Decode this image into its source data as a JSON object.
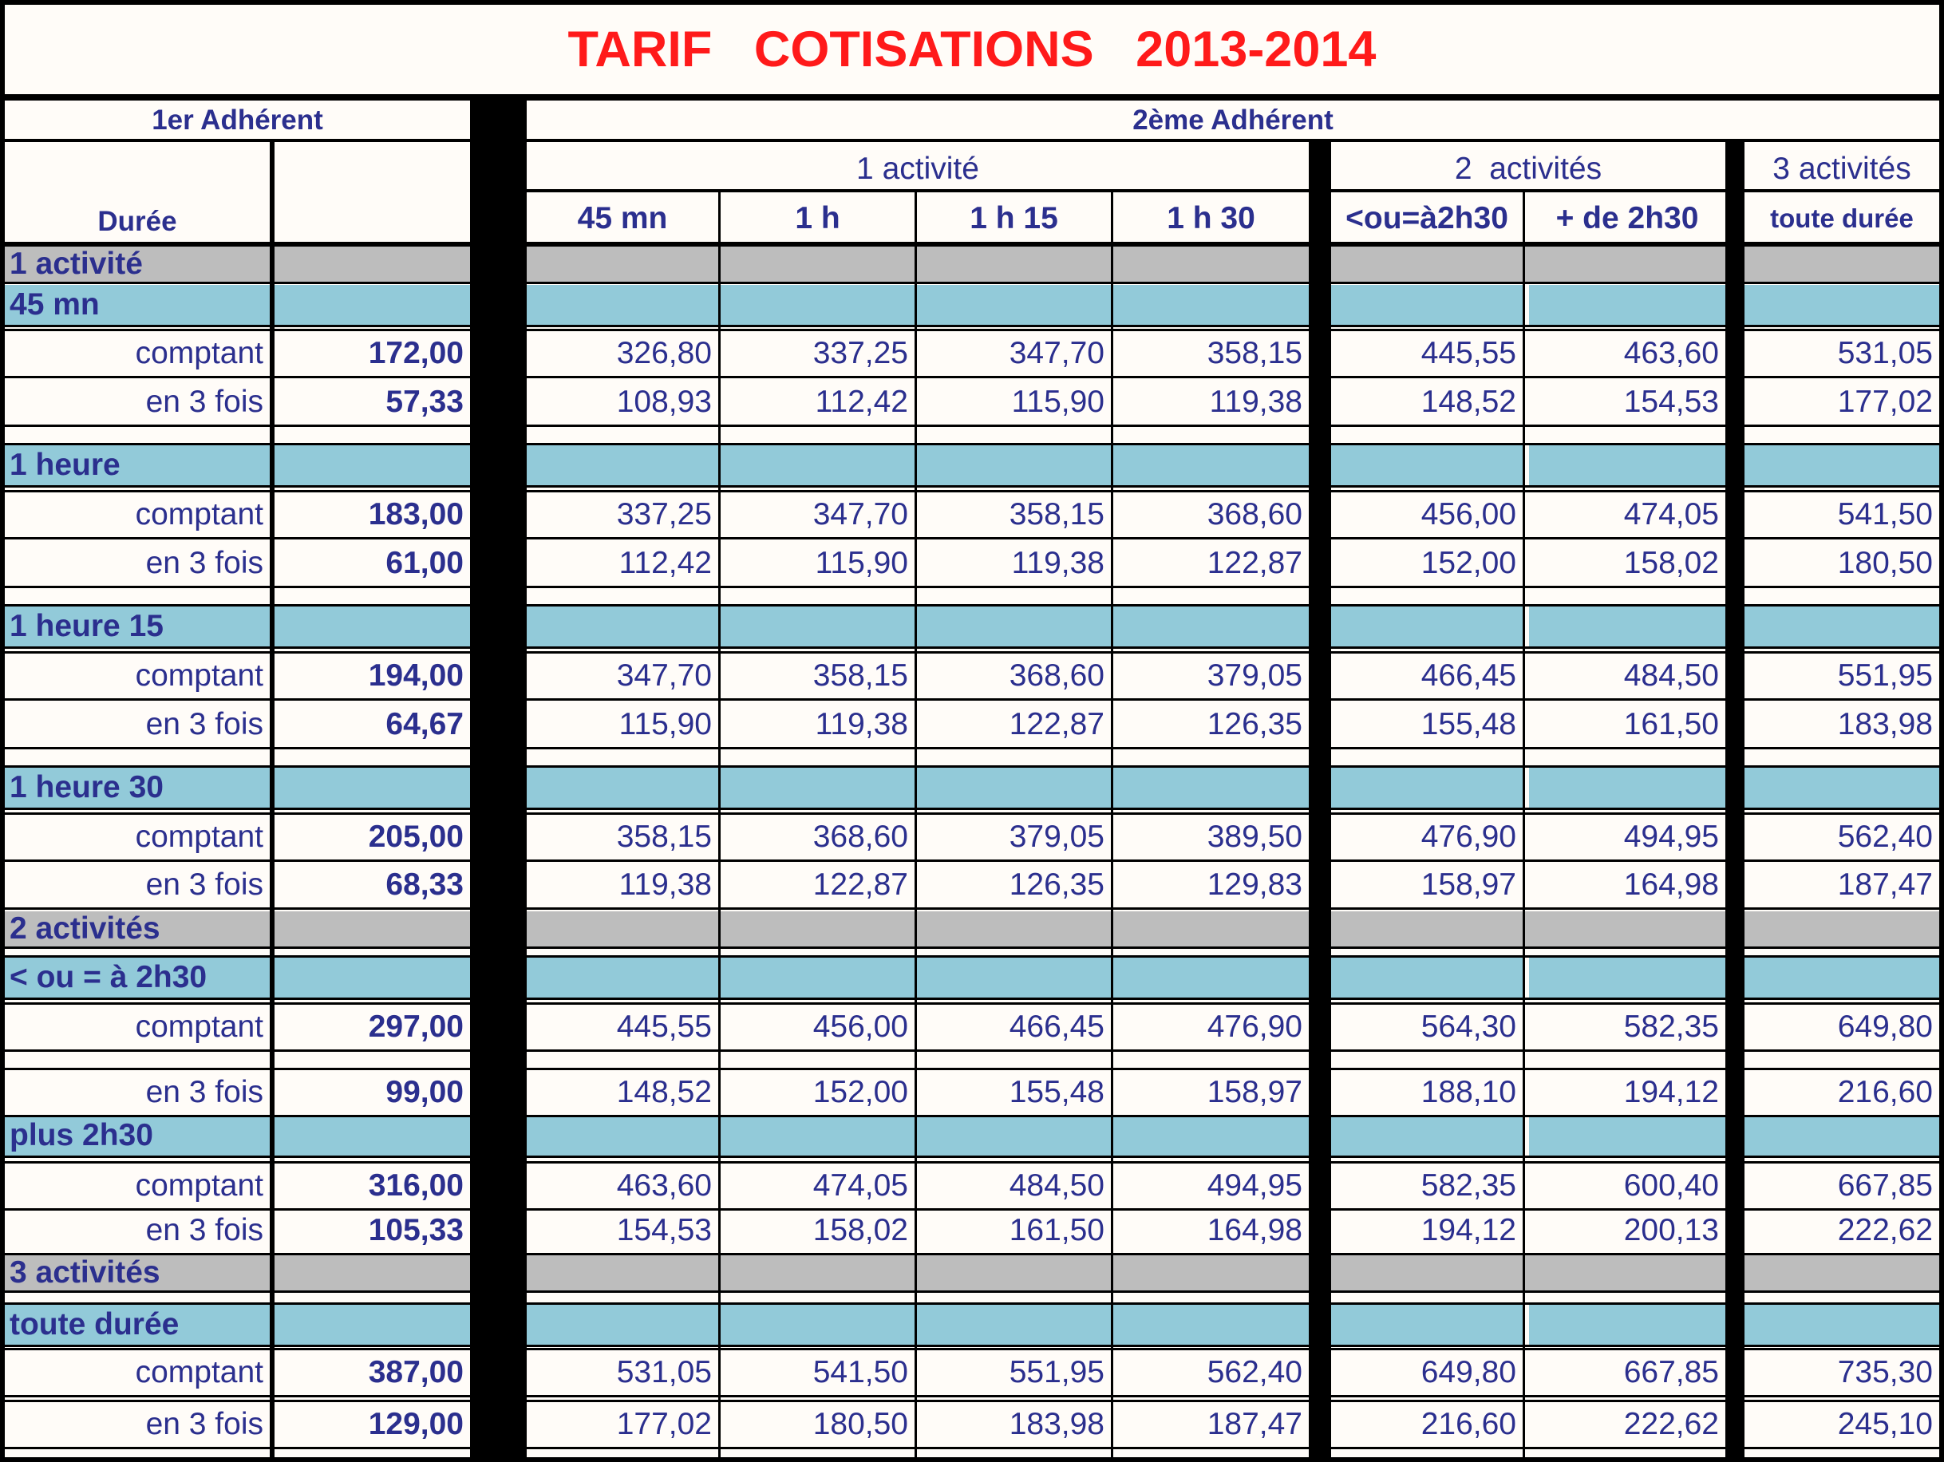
{
  "title": "TARIF   COTISATIONS   2013-2014",
  "colors": {
    "title": "#ff1a1a",
    "text": "#2b2f8e",
    "gray_band": "#bdbdbd",
    "blue_band": "#92cad9",
    "background": "#fffcf8",
    "grid": "#000000"
  },
  "header": {
    "first_member": "1er Adhérent",
    "second_member": "2ème Adhérent",
    "duration": "Durée",
    "group_1_activity": "1 activité",
    "group_2_activities": "2  activités",
    "group_3_activities": "3 activités",
    "columns": [
      "45 mn",
      "1 h",
      "1 h 15",
      "1 h 30",
      "<ou=à2h30",
      "+ de 2h30",
      "toute durée"
    ]
  },
  "sections": [
    {
      "label": "1 activité",
      "groups": [
        {
          "label": "45 mn",
          "rows": [
            {
              "label": "comptant",
              "first": "172,00",
              "values": [
                "326,80",
                "337,25",
                "347,70",
                "358,15",
                "445,55",
                "463,60",
                "531,05"
              ]
            },
            {
              "label": "en 3 fois",
              "first": "57,33",
              "values": [
                "108,93",
                "112,42",
                "115,90",
                "119,38",
                "148,52",
                "154,53",
                "177,02"
              ]
            }
          ]
        },
        {
          "label": "1 heure",
          "rows": [
            {
              "label": "comptant",
              "first": "183,00",
              "values": [
                "337,25",
                "347,70",
                "358,15",
                "368,60",
                "456,00",
                "474,05",
                "541,50"
              ]
            },
            {
              "label": "en 3 fois",
              "first": "61,00",
              "values": [
                "112,42",
                "115,90",
                "119,38",
                "122,87",
                "152,00",
                "158,02",
                "180,50"
              ]
            }
          ]
        },
        {
          "label": "1 heure 15",
          "rows": [
            {
              "label": "comptant",
              "first": "194,00",
              "values": [
                "347,70",
                "358,15",
                "368,60",
                "379,05",
                "466,45",
                "484,50",
                "551,95"
              ]
            },
            {
              "label": "en 3 fois",
              "first": "64,67",
              "values": [
                "115,90",
                "119,38",
                "122,87",
                "126,35",
                "155,48",
                "161,50",
                "183,98"
              ]
            }
          ]
        },
        {
          "label": "1 heure 30",
          "rows": [
            {
              "label": "comptant",
              "first": "205,00",
              "values": [
                "358,15",
                "368,60",
                "379,05",
                "389,50",
                "476,90",
                "494,95",
                "562,40"
              ]
            },
            {
              "label": "en 3 fois",
              "first": "68,33",
              "values": [
                "119,38",
                "122,87",
                "126,35",
                "129,83",
                "158,97",
                "164,98",
                "187,47"
              ]
            }
          ]
        }
      ]
    },
    {
      "label": "2 activités",
      "groups": [
        {
          "label": "< ou = à 2h30",
          "rows": [
            {
              "label": "comptant",
              "first": "297,00",
              "values": [
                "445,55",
                "456,00",
                "466,45",
                "476,90",
                "564,30",
                "582,35",
                "649,80"
              ]
            },
            {
              "label": "en 3 fois",
              "first": "99,00",
              "values": [
                "148,52",
                "152,00",
                "155,48",
                "158,97",
                "188,10",
                "194,12",
                "216,60"
              ]
            }
          ]
        },
        {
          "label": "plus 2h30",
          "rows": [
            {
              "label": "comptant",
              "first": "316,00",
              "values": [
                "463,60",
                "474,05",
                "484,50",
                "494,95",
                "582,35",
                "600,40",
                "667,85"
              ]
            },
            {
              "label": "en 3 fois",
              "first": "105,33",
              "values": [
                "154,53",
                "158,02",
                "161,50",
                "164,98",
                "194,12",
                "200,13",
                "222,62"
              ]
            }
          ]
        }
      ]
    },
    {
      "label": "3 activités",
      "groups": [
        {
          "label": "toute durée",
          "rows": [
            {
              "label": "comptant",
              "first": "387,00",
              "values": [
                "531,05",
                "541,50",
                "551,95",
                "562,40",
                "649,80",
                "667,85",
                "735,30"
              ]
            },
            {
              "label": "en 3 fois",
              "first": "129,00",
              "values": [
                "177,02",
                "180,50",
                "183,98",
                "187,47",
                "216,60",
                "222,62",
                "245,10"
              ]
            }
          ]
        }
      ]
    }
  ]
}
